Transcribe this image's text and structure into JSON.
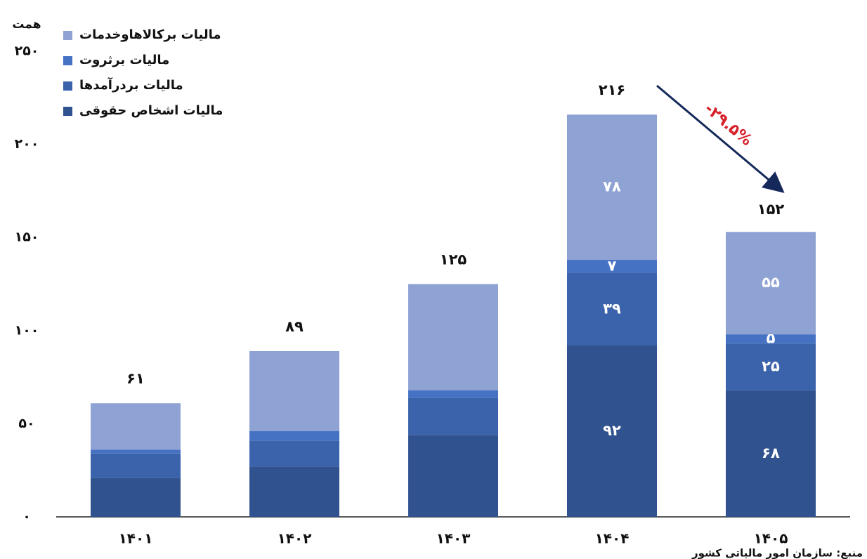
{
  "chart_data": {
    "type": "stacked_bar",
    "y_unit": "همت",
    "categories": [
      "۱۴۰۱",
      "۱۴۰۲",
      "۱۴۰۳",
      "۱۴۰۴",
      "۱۴۰۵"
    ],
    "series": [
      {
        "name": "مالیات اشخاص حقوقی",
        "color": "#30528f",
        "values": [
          21,
          27,
          44,
          92,
          68
        ],
        "value_labels": [
          null,
          null,
          null,
          "۹۲",
          "۶۸"
        ]
      },
      {
        "name": "مالیات بردرآمدها",
        "color": "#3b63ab",
        "values": [
          13,
          14,
          20,
          39,
          25
        ],
        "value_labels": [
          null,
          null,
          null,
          "۳۹",
          "۲۵"
        ]
      },
      {
        "name": "مالیات برثروت",
        "color": "#4672c4",
        "values": [
          2,
          5,
          4,
          7,
          5
        ],
        "value_labels": [
          null,
          null,
          null,
          "۷",
          "۵"
        ]
      },
      {
        "name": "مالیات برکالاهاوخدمات",
        "color": "#8ea2d3",
        "values": [
          25,
          43,
          57,
          78,
          55
        ],
        "value_labels": [
          null,
          null,
          null,
          "۷۸",
          "۵۵"
        ]
      }
    ],
    "totals": [
      61,
      89,
      125,
      216,
      152
    ],
    "total_labels": [
      "۶۱",
      "۸۹",
      "۱۲۵",
      "۲۱۶",
      "۱۵۲"
    ],
    "ylim": [
      0,
      250
    ],
    "yticks": [
      {
        "value": 0,
        "label": "۰"
      },
      {
        "value": 50,
        "label": "۵۰"
      },
      {
        "value": 100,
        "label": "۱۰۰"
      },
      {
        "value": 150,
        "label": "۱۵۰"
      },
      {
        "value": 200,
        "label": "۲۰۰"
      },
      {
        "value": 250,
        "label": "۲۵۰"
      }
    ],
    "grid": false,
    "change_annotation": "-۲۹.۵%",
    "source": "منبع: سازمان امور مالیاتی کشور"
  }
}
